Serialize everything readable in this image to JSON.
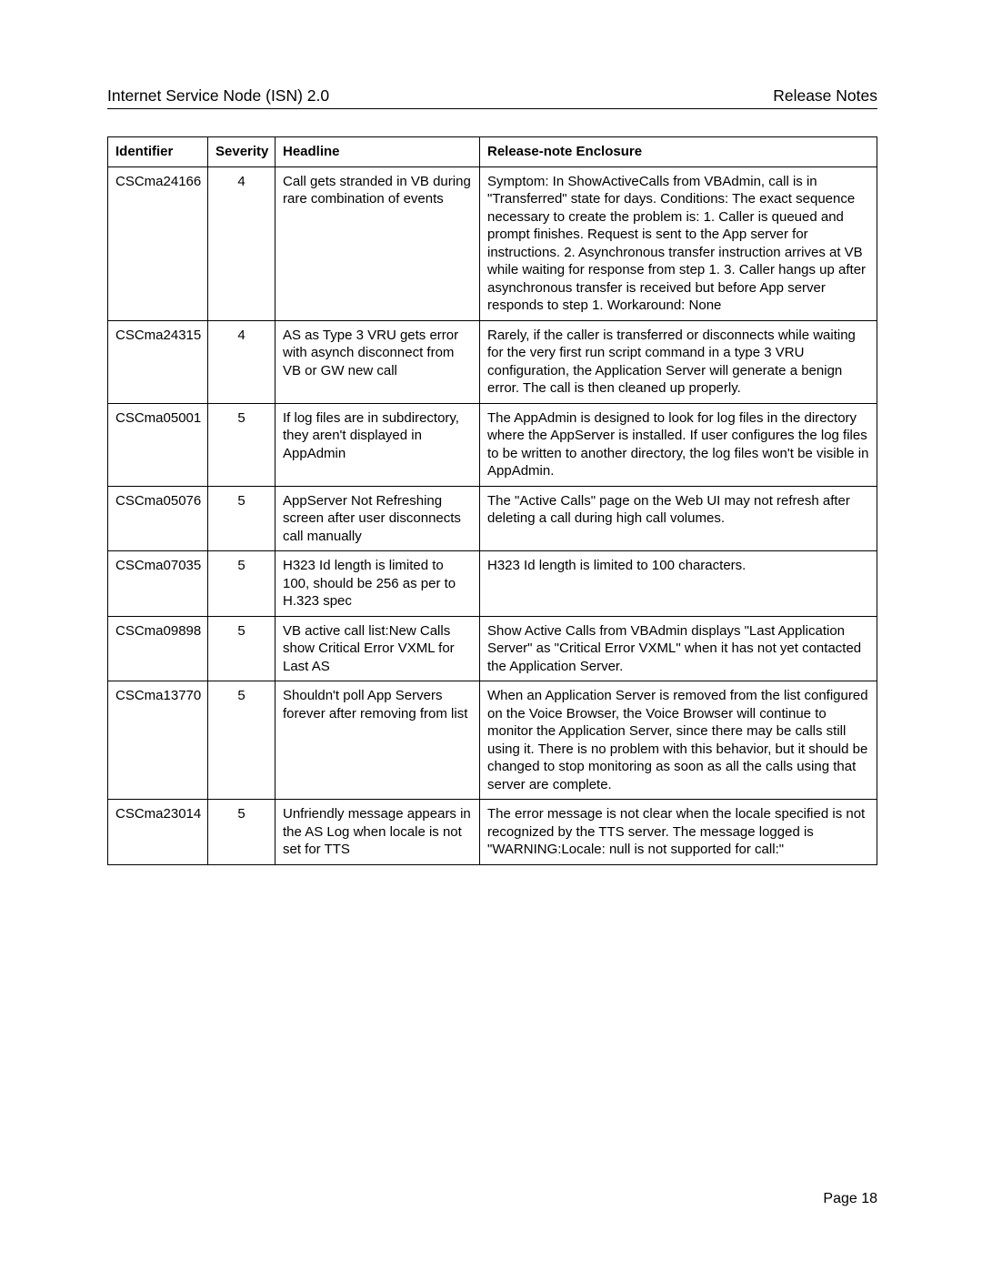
{
  "header": {
    "left": "Internet Service Node (ISN) 2.0",
    "right": "Release Notes"
  },
  "table": {
    "columns": [
      "Identifier",
      "Severity",
      "Headline",
      "Release-note Enclosure"
    ],
    "rows": [
      {
        "id": "CSCma24166",
        "sev": "4",
        "headline": "Call gets stranded in VB during rare combination of events",
        "enclosure": "Symptom: In ShowActiveCalls from VBAdmin, call is in \"Transferred\" state for days. Conditions: The exact sequence necessary to create the problem is: 1. Caller is queued and prompt finishes. Request is sent to the App server for instructions. 2. Asynchronous transfer instruction arrives at VB while waiting for response from step 1. 3. Caller hangs up after asynchronous transfer is received but before App server responds to step 1. Workaround: None"
      },
      {
        "id": "CSCma24315",
        "sev": "4",
        "headline": "AS as Type 3 VRU gets error with asynch disconnect from VB or GW new call",
        "enclosure": "Rarely, if the caller is transferred or disconnects while waiting for the very first run script command in a type 3 VRU configuration, the Application Server will generate a benign error. The call is then cleaned up properly."
      },
      {
        "id": "CSCma05001",
        "sev": "5",
        "headline": "If log files are in subdirectory, they aren't displayed in AppAdmin",
        "enclosure": "The AppAdmin is designed to look for log files in the directory where the AppServer is installed. If user configures the log files to be written to another directory, the log files won't be visible in AppAdmin."
      },
      {
        "id": "CSCma05076",
        "sev": "5",
        "headline": "AppServer Not Refreshing screen after user disconnects call manually",
        "enclosure": "The \"Active Calls\" page on the Web UI may not refresh after deleting a call during high call volumes."
      },
      {
        "id": "CSCma07035",
        "sev": "5",
        "headline": "H323 Id length is limited to 100, should be 256 as per to H.323 spec",
        "enclosure": "H323 Id length is limited to 100 characters."
      },
      {
        "id": "CSCma09898",
        "sev": "5",
        "headline": "VB active call list:New Calls show Critical Error VXML for Last AS",
        "enclosure": "Show Active Calls from VBAdmin displays \"Last Application Server\" as \"Critical Error VXML\" when it has not yet contacted the Application Server."
      },
      {
        "id": "CSCma13770",
        "sev": "5",
        "headline": "Shouldn't poll App Servers forever after removing from list",
        "enclosure": "When an Application Server is removed from the list configured on the Voice Browser, the Voice Browser will continue to monitor the Application Server, since there may be calls still using it. There is no problem with this behavior, but it should be changed to stop monitoring as soon as all the calls using that server are complete."
      },
      {
        "id": "CSCma23014",
        "sev": "5",
        "headline": "Unfriendly message appears in the AS Log when locale is not set for TTS",
        "enclosure": "The error message is not clear when the locale specified is not recognized by the TTS server. The message logged is \"WARNING:Locale: null is not supported for call:\""
      }
    ]
  },
  "footer": {
    "page_label": "Page 18"
  }
}
